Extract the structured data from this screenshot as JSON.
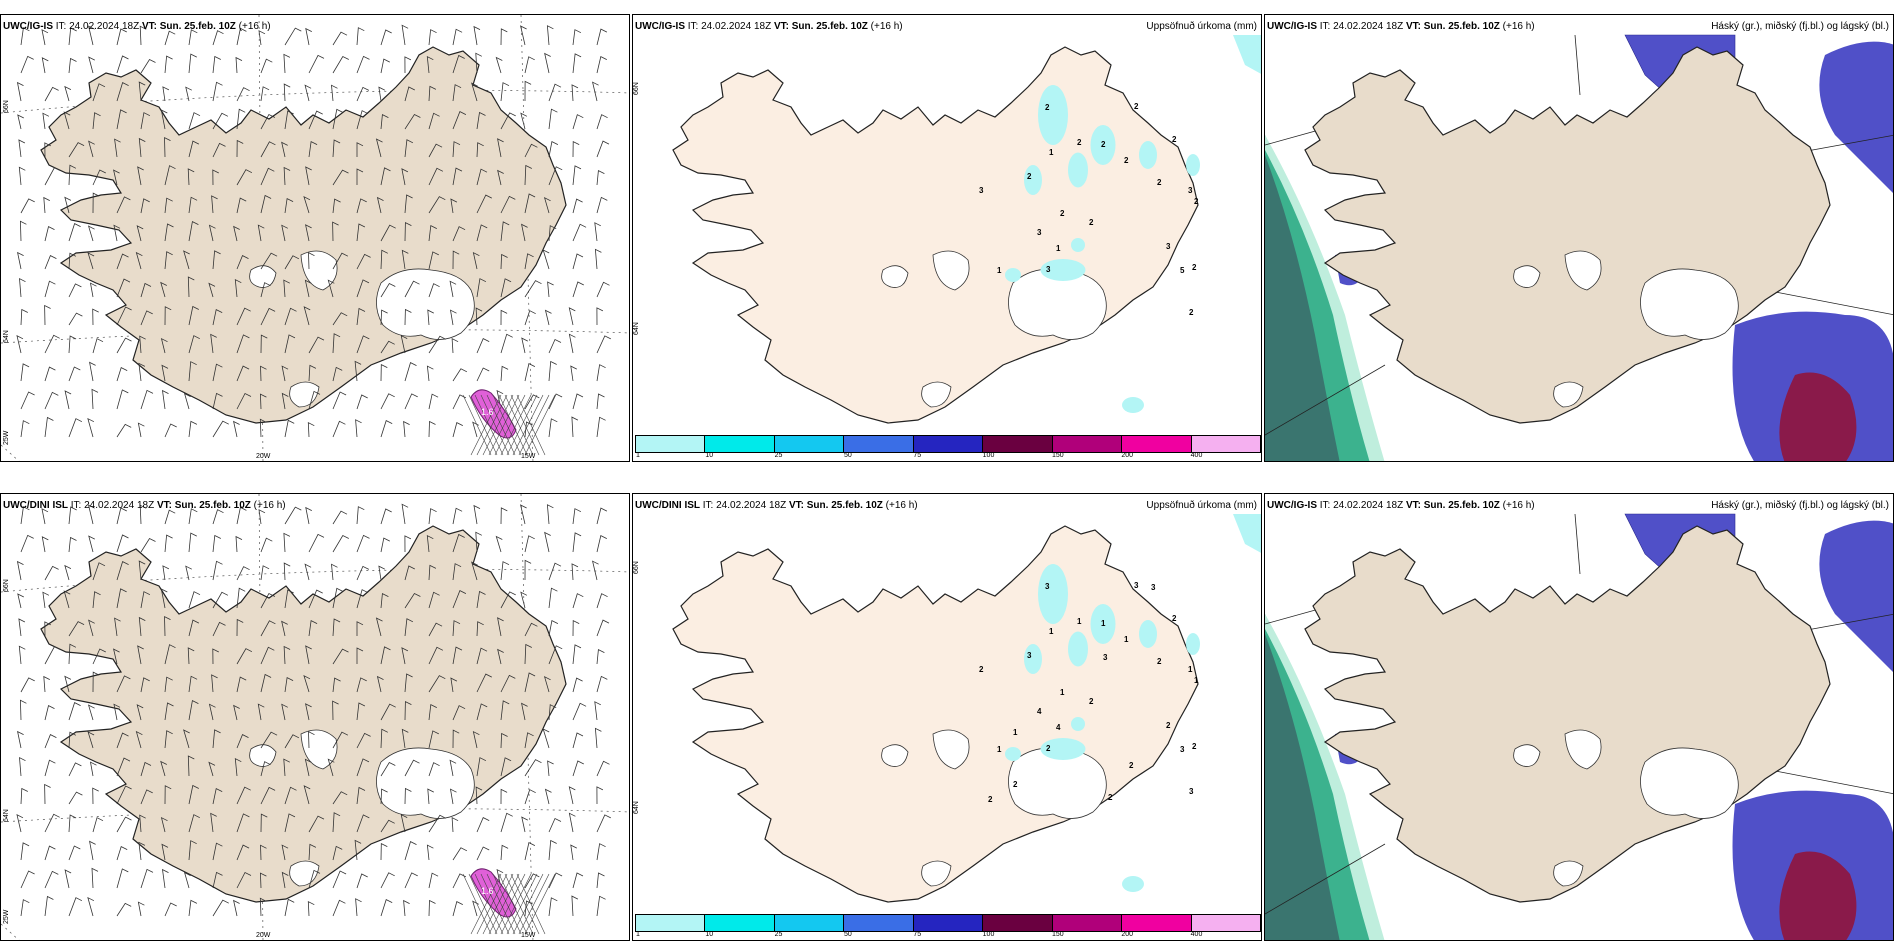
{
  "panels": [
    {
      "model": "UWC/IG-IS",
      "it_label": "IT:",
      "it": "24.02.2024 18Z",
      "vt_label": "VT:",
      "vt": "Sun. 25.feb. 10Z",
      "lead": "(+16 h)",
      "right_title": ""
    },
    {
      "model": "UWC/IG-IS",
      "it_label": "IT:",
      "it": "24.02.2024 18Z",
      "vt_label": "VT:",
      "vt": "Sun. 25.feb. 10Z",
      "lead": "(+16 h)",
      "right_title": "Uppsöfnuð úrkoma (mm)"
    },
    {
      "model": "UWC/IG-IS",
      "it_label": "IT:",
      "it": "24.02.2024 18Z",
      "vt_label": "VT:",
      "vt": "Sun. 25.feb. 10Z",
      "lead": "(+16 h)",
      "right_title": "Háský (gr.), miðský (fj.bl.) og lágský (bl.)"
    },
    {
      "model": "UWC/DINI ISL",
      "it_label": "IT:",
      "it": "24.02.2024 18Z",
      "vt_label": "VT:",
      "vt": "Sun. 25.feb. 10Z",
      "lead": "(+16 h)",
      "right_title": ""
    },
    {
      "model": "UWC/DINI ISL",
      "it_label": "IT:",
      "it": "24.02.2024 18Z",
      "vt_label": "VT:",
      "vt": "Sun. 25.feb. 10Z",
      "lead": "(+16 h)",
      "right_title": "Uppsöfnuð úrkoma (mm)"
    },
    {
      "model": "UWC/IG-IS",
      "it_label": "IT:",
      "it": "24.02.2024 18Z",
      "vt_label": "VT:",
      "vt": "Sun. 25.feb. 10Z",
      "lead": "(+16 h)",
      "right_title": "Háský (gr.), miðský (fj.bl.) og lágský (bl.)"
    }
  ],
  "axis_labels": {
    "lon_20": "20W",
    "lon_15": "15W",
    "lat_66": "66N",
    "lat_64": "64N",
    "lon_25": "25W"
  },
  "wind_value_top": "1.6",
  "colorbar": {
    "labels": [
      "1",
      "10",
      "25",
      "50",
      "75",
      "100",
      "150",
      "200",
      "400"
    ],
    "colors": [
      "#b3f5f5",
      "#00eaea",
      "#14c8f0",
      "#3a6ee6",
      "#2525c0",
      "#6a0040",
      "#b0007a",
      "#f000a0",
      "#f5b0f0"
    ]
  },
  "precip_top": [
    "1",
    "3",
    "2",
    "2",
    "2",
    "2",
    "1",
    "2",
    "5",
    "2",
    "2",
    "3",
    "2",
    "3",
    "1",
    "2",
    "3",
    "3",
    "2",
    "2",
    "2",
    "2"
  ],
  "precip_bottom": [
    "1",
    "1",
    "1",
    "1",
    "1",
    "2",
    "4",
    "3",
    "3",
    "2",
    "3",
    "2",
    "2",
    "2",
    "1",
    "2",
    "4",
    "2",
    "3",
    "1",
    "3",
    "1",
    "2",
    "1",
    "3",
    "3",
    "2",
    "2",
    "2"
  ],
  "colors": {
    "land": "#e8dccb",
    "land_precip": "#fbeee2",
    "sea": "#ffffff",
    "coast": "#222222"
  }
}
